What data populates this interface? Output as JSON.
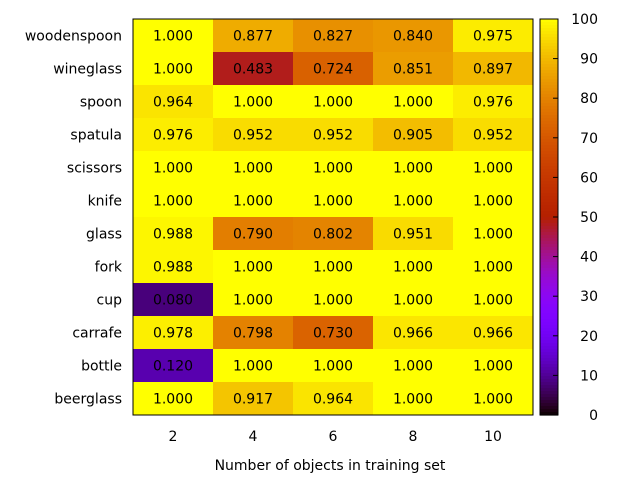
{
  "chart_data": {
    "type": "heatmap",
    "xlabel": "Number of objects in training set",
    "x": [
      "2",
      "4",
      "6",
      "8",
      "10"
    ],
    "y": [
      "woodenspoon",
      "wineglass",
      "spoon",
      "spatula",
      "scissors",
      "knife",
      "glass",
      "fork",
      "cup",
      "carrafe",
      "bottle",
      "beerglass"
    ],
    "values": [
      [
        "1.000",
        "0.877",
        "0.827",
        "0.840",
        "0.975"
      ],
      [
        "1.000",
        "0.483",
        "0.724",
        "0.851",
        "0.897"
      ],
      [
        "0.964",
        "1.000",
        "1.000",
        "1.000",
        "0.976"
      ],
      [
        "0.976",
        "0.952",
        "0.952",
        "0.905",
        "0.952"
      ],
      [
        "1.000",
        "1.000",
        "1.000",
        "1.000",
        "1.000"
      ],
      [
        "1.000",
        "1.000",
        "1.000",
        "1.000",
        "1.000"
      ],
      [
        "0.988",
        "0.790",
        "0.802",
        "0.951",
        "1.000"
      ],
      [
        "0.988",
        "1.000",
        "1.000",
        "1.000",
        "1.000"
      ],
      [
        "0.080",
        "1.000",
        "1.000",
        "1.000",
        "1.000"
      ],
      [
        "0.978",
        "0.798",
        "0.730",
        "0.966",
        "0.966"
      ],
      [
        "0.120",
        "1.000",
        "1.000",
        "1.000",
        "1.000"
      ],
      [
        "1.000",
        "0.917",
        "0.964",
        "1.000",
        "1.000"
      ]
    ],
    "colorbar": {
      "range": [
        0,
        100
      ],
      "ticks": [
        "0",
        "10",
        "20",
        "30",
        "40",
        "50",
        "60",
        "70",
        "80",
        "90",
        "100"
      ],
      "palette": "gnuplot-rgbformulae-7-5-15"
    },
    "grid": false,
    "legend": "colorbar-right"
  }
}
